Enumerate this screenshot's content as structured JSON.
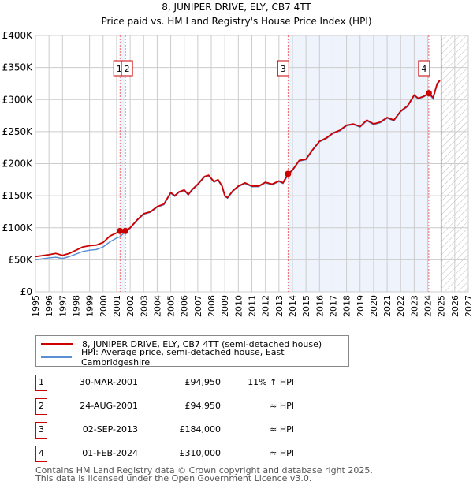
{
  "chart_data": {
    "type": "line",
    "title": "8, JUNIPER DRIVE, ELY, CB7 4TT",
    "subtitle": "Price paid vs. HM Land Registry's House Price Index (HPI)",
    "xlim": [
      1995,
      2027
    ],
    "ylim": [
      0,
      400000
    ],
    "yticks": [
      {
        "v": 0,
        "label": "£0"
      },
      {
        "v": 50000,
        "label": "£50K"
      },
      {
        "v": 100000,
        "label": "£100K"
      },
      {
        "v": 150000,
        "label": "£150K"
      },
      {
        "v": 200000,
        "label": "£200K"
      },
      {
        "v": 250000,
        "label": "£250K"
      },
      {
        "v": 300000,
        "label": "£300K"
      },
      {
        "v": 350000,
        "label": "£350K"
      },
      {
        "v": 400000,
        "label": "£400K"
      }
    ],
    "xticks": [
      "1995",
      "1996",
      "1997",
      "1998",
      "1999",
      "2000",
      "2001",
      "2002",
      "2003",
      "2004",
      "2005",
      "2006",
      "2007",
      "2008",
      "2009",
      "2010",
      "2011",
      "2012",
      "2013",
      "2014",
      "2015",
      "2016",
      "2017",
      "2018",
      "2019",
      "2020",
      "2021",
      "2022",
      "2023",
      "2024",
      "2025",
      "2026",
      "2027"
    ],
    "grid": true,
    "colors": {
      "property": "#cc0000",
      "hpi": "#5b8fd4",
      "shade": "#eef3fc"
    },
    "series": [
      {
        "name": "8, JUNIPER DRIVE, ELY, CB7 4TT (semi-detached house)",
        "points": [
          [
            1995,
            55
          ],
          [
            1996,
            58
          ],
          [
            1996.5,
            60
          ],
          [
            1997,
            57
          ],
          [
            1997.5,
            60
          ],
          [
            1998,
            65
          ],
          [
            1998.5,
            70
          ],
          [
            1999,
            72
          ],
          [
            1999.5,
            73
          ],
          [
            2000,
            77
          ],
          [
            2000.5,
            87
          ],
          [
            2001,
            92
          ],
          [
            2001.25,
            94.95
          ],
          [
            2001.5,
            97
          ],
          [
            2001.65,
            94.95
          ],
          [
            2002,
            100
          ],
          [
            2002.5,
            112
          ],
          [
            2003,
            122
          ],
          [
            2003.5,
            125
          ],
          [
            2004,
            133
          ],
          [
            2004.5,
            137
          ],
          [
            2005,
            155
          ],
          [
            2005.3,
            150
          ],
          [
            2005.6,
            156
          ],
          [
            2006,
            159
          ],
          [
            2006.3,
            152
          ],
          [
            2006.6,
            160
          ],
          [
            2007,
            168
          ],
          [
            2007.5,
            180
          ],
          [
            2007.8,
            182
          ],
          [
            2008.2,
            172
          ],
          [
            2008.5,
            175
          ],
          [
            2008.8,
            165
          ],
          [
            2009,
            150
          ],
          [
            2009.2,
            147
          ],
          [
            2009.6,
            158
          ],
          [
            2010,
            165
          ],
          [
            2010.5,
            170
          ],
          [
            2011,
            165
          ],
          [
            2011.5,
            165
          ],
          [
            2012,
            171
          ],
          [
            2012.5,
            168
          ],
          [
            2013,
            173
          ],
          [
            2013.3,
            170
          ],
          [
            2013.67,
            184
          ],
          [
            2014,
            190
          ],
          [
            2014.5,
            205
          ],
          [
            2015,
            207
          ],
          [
            2015.5,
            222
          ],
          [
            2016,
            235
          ],
          [
            2016.5,
            240
          ],
          [
            2017,
            248
          ],
          [
            2017.5,
            252
          ],
          [
            2018,
            260
          ],
          [
            2018.5,
            262
          ],
          [
            2019,
            258
          ],
          [
            2019.5,
            268
          ],
          [
            2020,
            262
          ],
          [
            2020.5,
            265
          ],
          [
            2021,
            272
          ],
          [
            2021.5,
            268
          ],
          [
            2022,
            282
          ],
          [
            2022.5,
            290
          ],
          [
            2023,
            307
          ],
          [
            2023.3,
            302
          ],
          [
            2023.7,
            305
          ],
          [
            2024.08,
            310
          ],
          [
            2024.4,
            303
          ],
          [
            2024.7,
            325
          ],
          [
            2024.9,
            330
          ]
        ]
      },
      {
        "name": "HPI: Average price, semi-detached house, East Cambridgeshire",
        "points": [
          [
            1995,
            50
          ],
          [
            1996,
            53
          ],
          [
            1996.5,
            54
          ],
          [
            1997,
            52
          ],
          [
            1997.5,
            55
          ],
          [
            1998,
            59
          ],
          [
            1998.5,
            63
          ],
          [
            1999,
            65
          ],
          [
            1999.5,
            66
          ],
          [
            2000,
            70
          ],
          [
            2000.5,
            78
          ],
          [
            2001,
            84
          ],
          [
            2001.25,
            86
          ],
          [
            2001.65,
            94
          ],
          [
            2002,
            99
          ],
          [
            2002.5,
            111
          ],
          [
            2003,
            121
          ],
          [
            2003.5,
            124
          ],
          [
            2004,
            132
          ],
          [
            2004.5,
            136
          ],
          [
            2005,
            154
          ],
          [
            2005.3,
            149
          ],
          [
            2005.6,
            155
          ],
          [
            2006,
            158
          ],
          [
            2006.3,
            151
          ],
          [
            2006.6,
            159
          ],
          [
            2007,
            167
          ],
          [
            2007.5,
            179
          ],
          [
            2007.8,
            181
          ],
          [
            2008.2,
            171
          ],
          [
            2008.5,
            174
          ],
          [
            2008.8,
            164
          ],
          [
            2009,
            149
          ],
          [
            2009.2,
            146
          ],
          [
            2009.6,
            157
          ],
          [
            2010,
            164
          ],
          [
            2010.5,
            169
          ],
          [
            2011,
            164
          ],
          [
            2011.5,
            164
          ],
          [
            2012,
            170
          ],
          [
            2012.5,
            167
          ],
          [
            2013,
            172
          ],
          [
            2013.3,
            169
          ],
          [
            2013.67,
            182
          ],
          [
            2014,
            189
          ],
          [
            2014.5,
            204
          ],
          [
            2015,
            206
          ],
          [
            2015.5,
            221
          ],
          [
            2016,
            234
          ],
          [
            2016.5,
            239
          ],
          [
            2017,
            247
          ],
          [
            2017.5,
            251
          ],
          [
            2018,
            259
          ],
          [
            2018.5,
            261
          ],
          [
            2019,
            257
          ],
          [
            2019.5,
            267
          ],
          [
            2020,
            261
          ],
          [
            2020.5,
            264
          ],
          [
            2021,
            271
          ],
          [
            2021.5,
            267
          ],
          [
            2022,
            281
          ],
          [
            2022.5,
            289
          ],
          [
            2023,
            306
          ],
          [
            2023.3,
            301
          ],
          [
            2023.7,
            304
          ],
          [
            2024.08,
            309
          ],
          [
            2024.4,
            301
          ],
          [
            2024.7,
            324
          ],
          [
            2024.9,
            329
          ]
        ]
      }
    ],
    "sales": [
      {
        "label": "1",
        "x": 2001.25,
        "y": 94950
      },
      {
        "label": "2",
        "x": 2001.65,
        "y": 94950
      },
      {
        "label": "3",
        "x": 2013.67,
        "y": 184000
      },
      {
        "label": "4",
        "x": 2024.08,
        "y": 310000
      }
    ],
    "forecast_start": 2025.0
  },
  "legend": {
    "property": "8, JUNIPER DRIVE, ELY, CB7 4TT (semi-detached house)",
    "hpi": "HPI: Average price, semi-detached house, East Cambridgeshire"
  },
  "transactions": [
    {
      "num": "1",
      "date": "30-MAR-2001",
      "price": "£94,950",
      "rel": "11% ↑ HPI"
    },
    {
      "num": "2",
      "date": "24-AUG-2001",
      "price": "£94,950",
      "rel": "≈ HPI"
    },
    {
      "num": "3",
      "date": "02-SEP-2013",
      "price": "£184,000",
      "rel": "≈ HPI"
    },
    {
      "num": "4",
      "date": "01-FEB-2024",
      "price": "£310,000",
      "rel": "≈ HPI"
    }
  ],
  "footer": {
    "line1": "Contains HM Land Registry data © Crown copyright and database right 2025.",
    "line2": "This data is licensed under the Open Government Licence v3.0."
  }
}
